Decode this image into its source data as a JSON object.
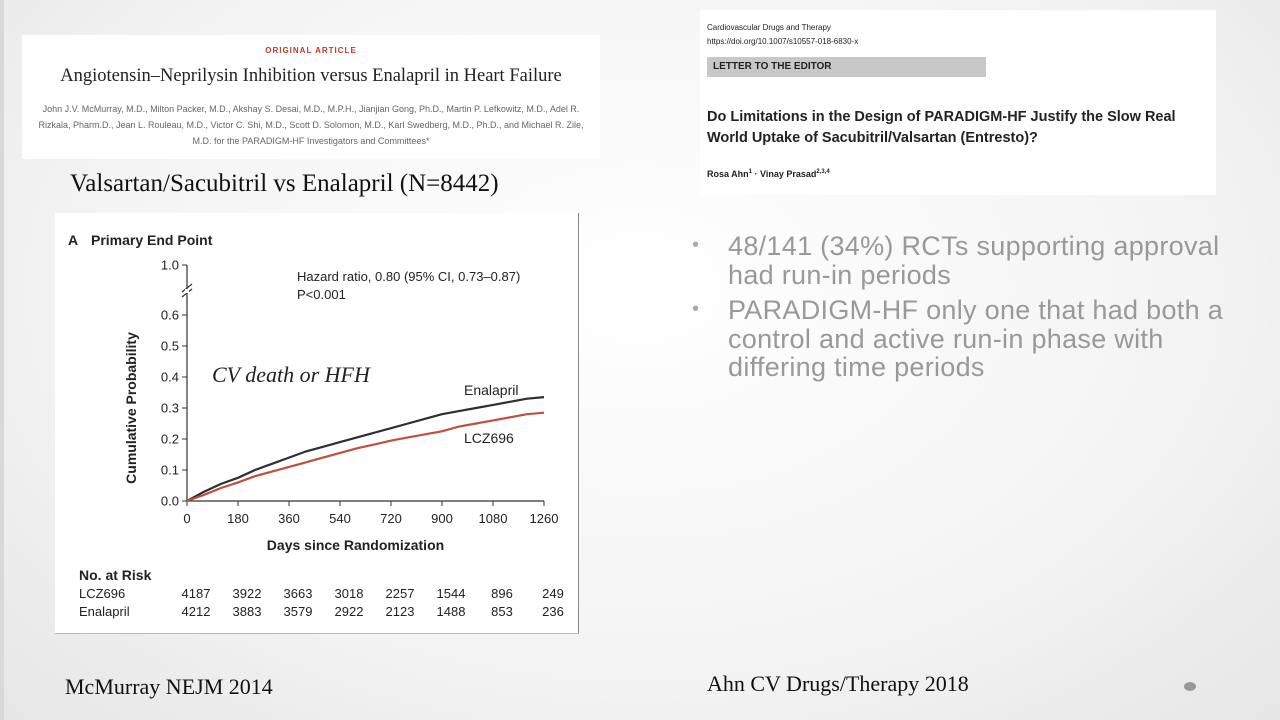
{
  "nejm": {
    "kicker": "ORIGINAL ARTICLE",
    "title": "Angiotensin–Neprilysin Inhibition versus Enalapril in Heart Failure",
    "authors": "John J.V. McMurray, M.D., Milton Packer, M.D., Akshay S. Desai, M.D., M.P.H., Jianjian Gong, Ph.D., Martin P. Lefkowitz, M.D., Adel R. Rizkala, Pharm.D., Jean L. Rouleau, M.D., Victor C. Shi, M.D., Scott D. Solomon, M.D., Karl Swedberg, M.D., Ph.D., and Michael R. Zile, M.D. for the PARADIGM-HF Investigators and Committees*"
  },
  "comparison_title": "Valsartan/Sacubitril vs Enalapril (N=8442)",
  "chart_data": {
    "type": "line",
    "panel_label": "A",
    "title": "Primary End Point",
    "annotation": "CV death or HFH",
    "hazard_text": "Hazard ratio, 0.80 (95% CI, 0.73–0.87)",
    "p_text": "P<0.001",
    "xlabel": "Days since Randomization",
    "ylabel": "Cumulative Probability",
    "xlim": [
      0,
      1260
    ],
    "ylim": [
      0,
      0.6
    ],
    "y_axis_break": true,
    "x_ticks": [
      0,
      180,
      360,
      540,
      720,
      900,
      1080,
      1260
    ],
    "y_ticks": [
      0.0,
      0.1,
      0.2,
      0.3,
      0.4,
      0.5,
      0.6
    ],
    "y_ticks_text": [
      "0.0",
      "0.1",
      "0.2",
      "0.3",
      "0.4",
      "0.5",
      "0.6"
    ],
    "y_top_tick": "1.0",
    "grid": false,
    "series": [
      {
        "name": "Enalapril",
        "color": "#2b2f36",
        "x": [
          0,
          60,
          120,
          180,
          240,
          300,
          360,
          420,
          480,
          540,
          600,
          660,
          720,
          780,
          840,
          900,
          960,
          1020,
          1080,
          1140,
          1200,
          1260
        ],
        "y": [
          0,
          0.03,
          0.055,
          0.075,
          0.1,
          0.12,
          0.14,
          0.16,
          0.175,
          0.19,
          0.205,
          0.22,
          0.235,
          0.25,
          0.265,
          0.28,
          0.29,
          0.3,
          0.31,
          0.32,
          0.33,
          0.335
        ]
      },
      {
        "name": "LCZ696",
        "color": "#c0503e",
        "x": [
          0,
          60,
          120,
          180,
          240,
          300,
          360,
          420,
          480,
          540,
          600,
          660,
          720,
          780,
          840,
          900,
          960,
          1020,
          1080,
          1140,
          1200,
          1260
        ],
        "y": [
          0,
          0.02,
          0.042,
          0.06,
          0.08,
          0.095,
          0.11,
          0.125,
          0.14,
          0.155,
          0.17,
          0.182,
          0.195,
          0.205,
          0.215,
          0.225,
          0.24,
          0.25,
          0.26,
          0.27,
          0.28,
          0.285
        ]
      }
    ],
    "at_risk": {
      "heading": "No. at Risk",
      "rows": [
        {
          "label": "LCZ696",
          "values": [
            "4187",
            "3922",
            "3663",
            "3018",
            "2257",
            "1544",
            "896",
            "249"
          ]
        },
        {
          "label": "Enalapril",
          "values": [
            "4212",
            "3883",
            "3579",
            "2922",
            "2123",
            "1488",
            "853",
            "236"
          ]
        }
      ]
    }
  },
  "letter": {
    "journal": "Cardiovascular Drugs and Therapy",
    "doi": "https://doi.org/10.1007/s10557-018-6830-x",
    "section": "LETTER TO THE EDITOR",
    "title": "Do Limitations in the Design of PARADIGM-HF Justify the Slow Real World Uptake of Sacubitril/Valsartan (Entresto)?",
    "author1": "Rosa Ahn",
    "author1_sup": "1",
    "separator": " · ",
    "author2": "Vinay Prasad",
    "author2_sup": "2,3,4"
  },
  "bullets": [
    "48/141 (34%) RCTs supporting approval had run-in periods",
    "PARADIGM-HF only one that had both a control and active run-in phase with differing time periods"
  ],
  "bullet_glyph": "•",
  "citation_left": "McMurray NEJM 2014",
  "citation_right": "Ahn CV Drugs/Therapy 2018"
}
